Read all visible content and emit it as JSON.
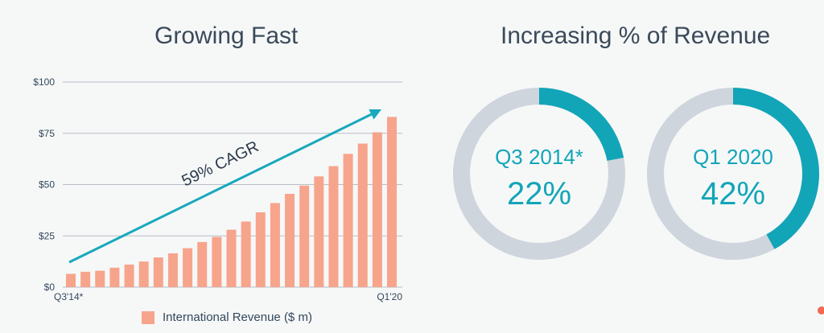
{
  "left_title": "Growing Fast",
  "right_title": "Increasing % of Revenue",
  "legend_label": "International Revenue ($ m)",
  "annotation": "59% CAGR",
  "colors": {
    "bar": "#f7a48c",
    "arrow": "#19a8bd",
    "donut_fill": "#12a5b8",
    "donut_track": "#cfd5dd",
    "grid": "#b8bec6",
    "accent_dot": "#f26a4f"
  },
  "chart_data": [
    {
      "type": "bar",
      "title": "Growing Fast",
      "series": [
        {
          "name": "International Revenue ($ m)",
          "values": [
            6.5,
            7.5,
            8,
            9.5,
            11,
            12.5,
            14.5,
            16.5,
            19,
            22,
            24.5,
            28,
            32,
            36.5,
            41,
            45.5,
            49.5,
            54,
            59,
            65,
            70,
            75.5,
            83
          ]
        }
      ],
      "x_tick_labels": [
        "Q3'14*",
        "Q1'20"
      ],
      "y_ticks": [
        0,
        25,
        50,
        75,
        100
      ],
      "y_tick_labels": [
        "$0",
        "$25",
        "$50",
        "$75",
        "$100"
      ],
      "ylim": [
        0,
        100
      ],
      "grid": true,
      "legend": "bottom",
      "annotation": "59% CAGR"
    },
    {
      "type": "pie",
      "title": "Increasing % of Revenue",
      "charts": [
        {
          "label": "Q3 2014*",
          "value_text": "22%",
          "value": 22
        },
        {
          "label": "Q1 2020",
          "value_text": "42%",
          "value": 42
        }
      ]
    }
  ]
}
